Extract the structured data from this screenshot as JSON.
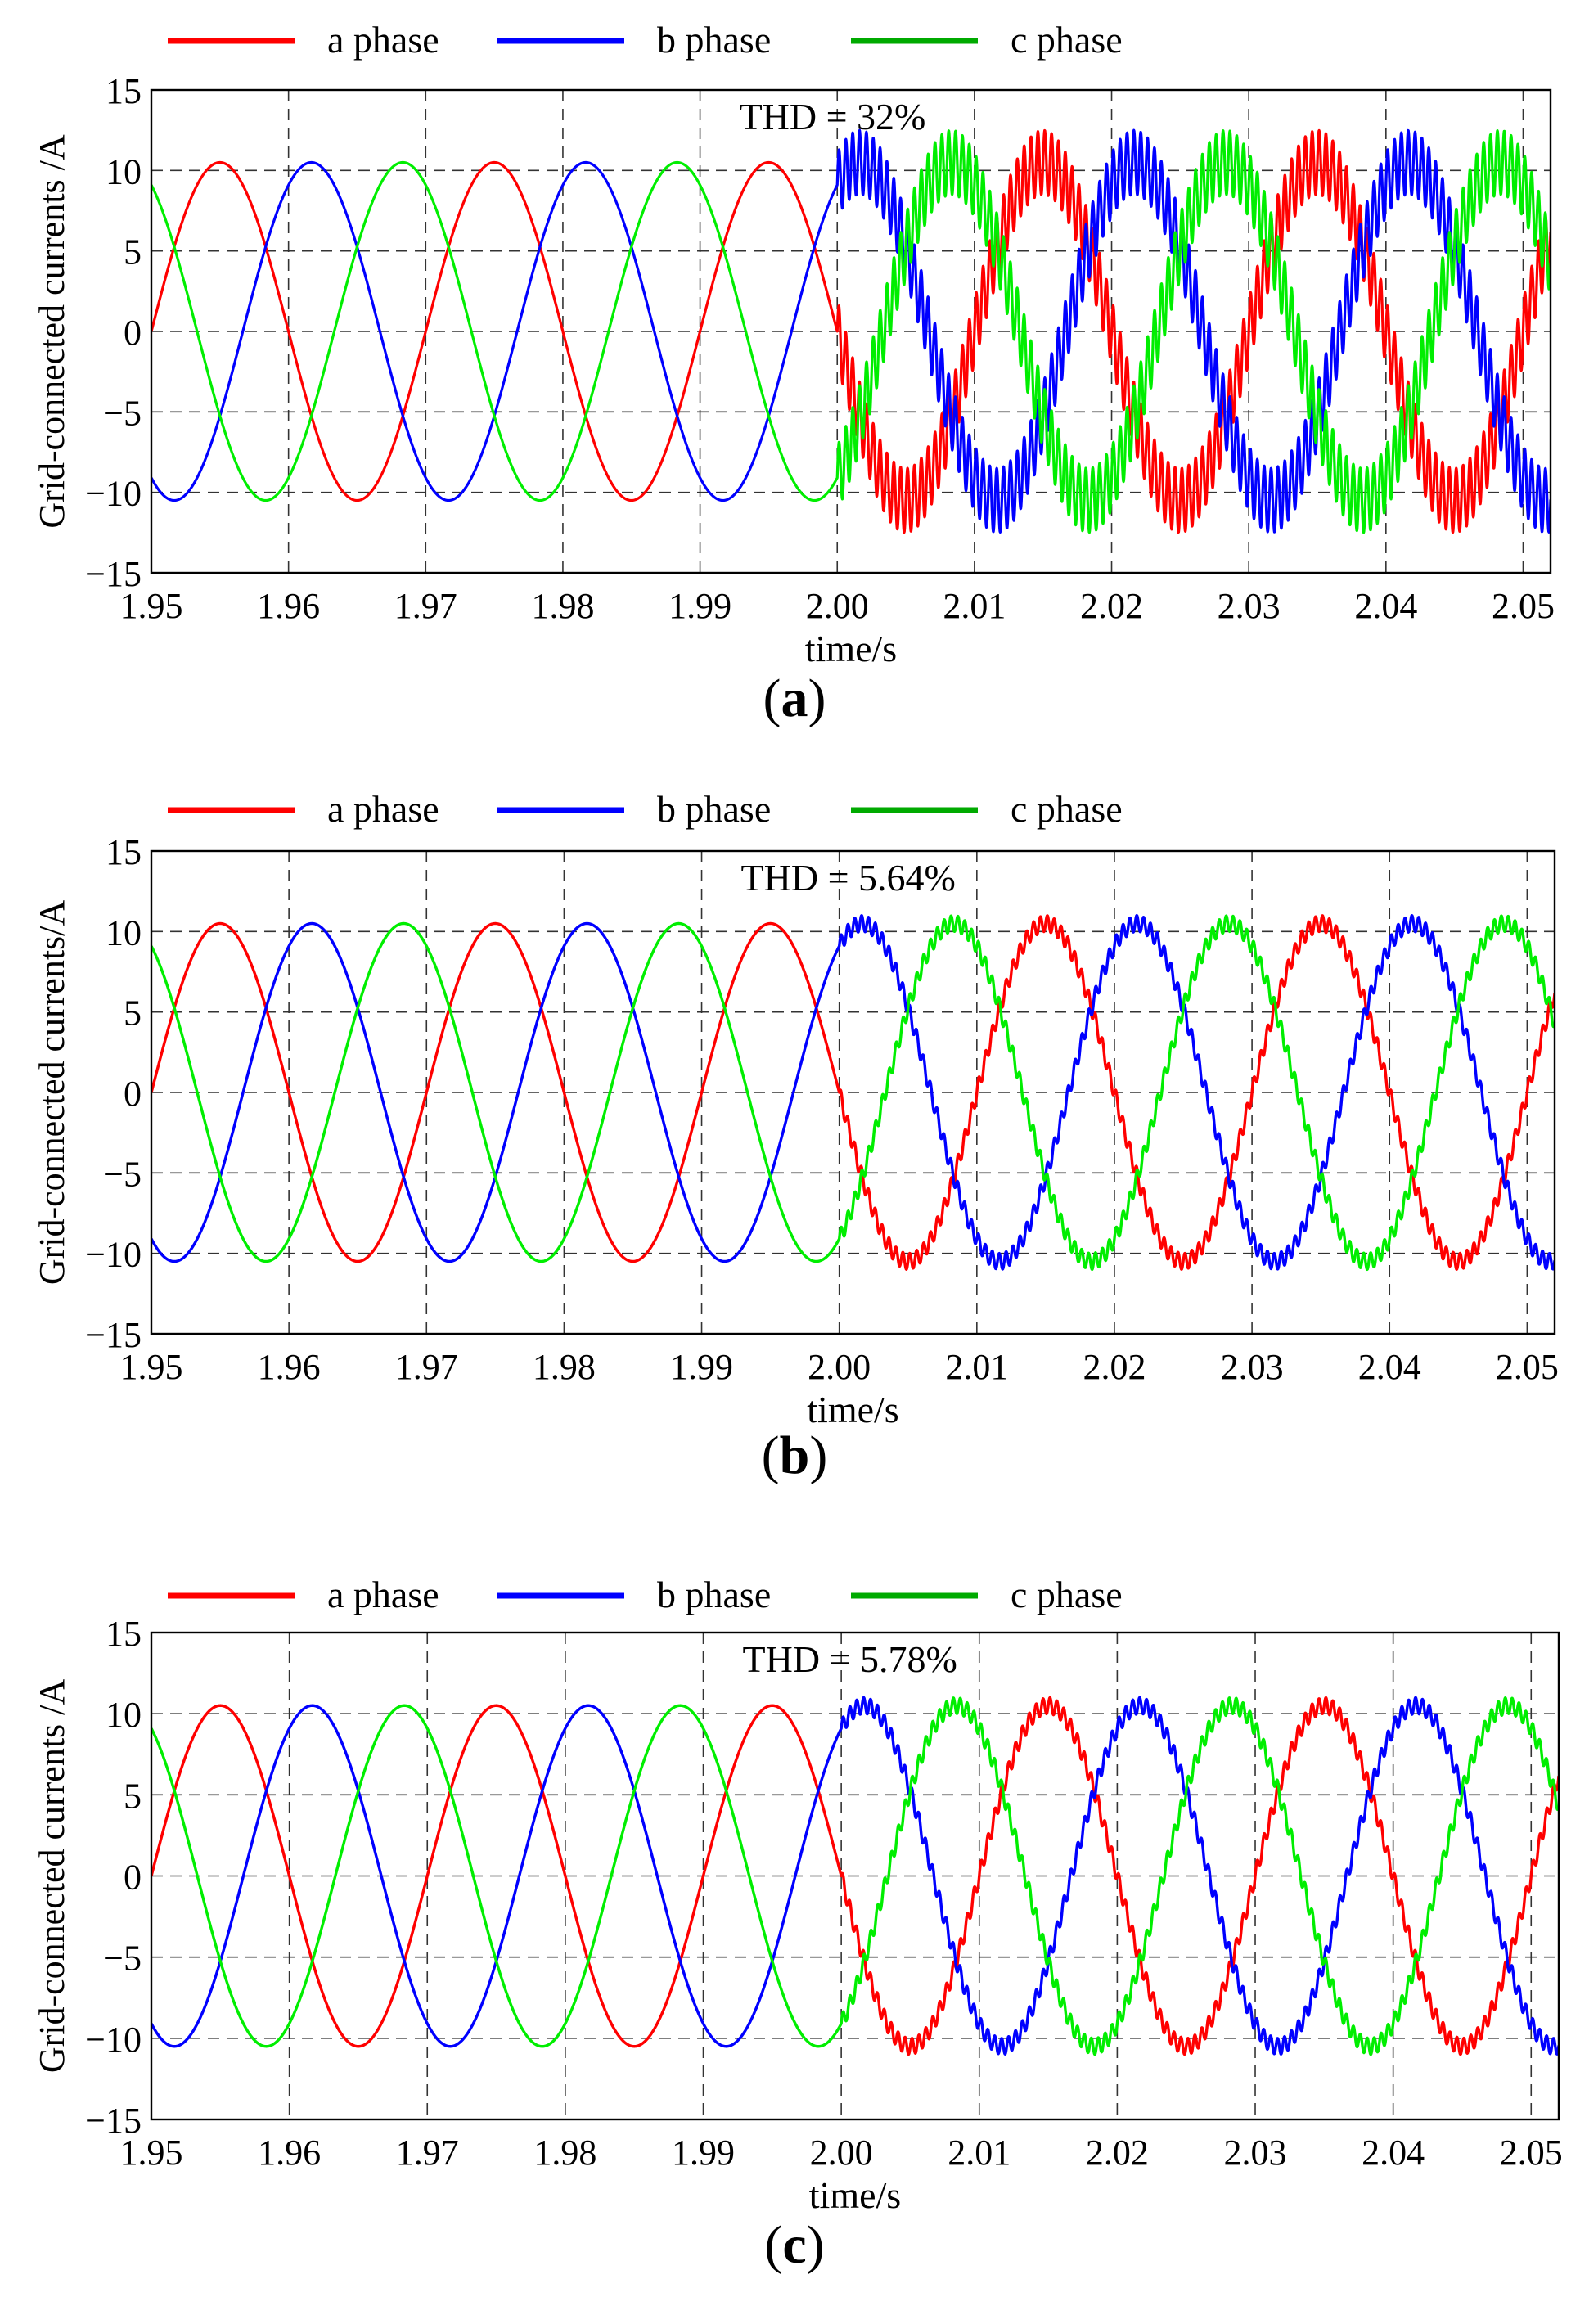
{
  "figure": {
    "panels": [
      "(a)",
      "(b)",
      "(c)"
    ]
  },
  "colors": {
    "a_phase": "#ff0000",
    "b_phase": "#0000ff",
    "c_phase": "#00ee00",
    "legend_c": "#00aa00"
  },
  "chart_data": [
    {
      "type": "line",
      "label": "a",
      "annotation": "THD = 32%",
      "xlabel": "time/s",
      "ylabel": "Grid-connected currents /A",
      "xlim": [
        1.95,
        2.052
      ],
      "ylim": [
        -15,
        15
      ],
      "x_ticks": [
        "1.95",
        "1.96",
        "1.97",
        "1.98",
        "1.99",
        "2.00",
        "2.01",
        "2.02",
        "2.03",
        "2.04",
        "2.05"
      ],
      "y_ticks": [
        "15",
        "10",
        "5",
        "0",
        "−5",
        "−10",
        "−15"
      ],
      "grid": true,
      "legend": [
        "a phase",
        "b phase",
        "c phase"
      ],
      "legend_position": "top",
      "series": [
        {
          "name": "a phase",
          "amplitude": 10.5,
          "frequency_hz": 50,
          "phase_deg": 0
        },
        {
          "name": "b phase",
          "amplitude": 10.5,
          "frequency_hz": 50,
          "phase_deg": -120
        },
        {
          "name": "c phase",
          "amplitude": 10.5,
          "frequency_hz": 50,
          "phase_deg": 120
        }
      ],
      "disturbance": {
        "start_time": 2.0,
        "ripple_amplitude_A": 2.0,
        "fundamental_change": 1.0
      }
    },
    {
      "type": "line",
      "label": "b",
      "annotation": "THD = 5.64%",
      "xlabel": "time/s",
      "ylabel": "Grid-connected currents/A",
      "xlim": [
        1.95,
        2.052
      ],
      "ylim": [
        -15,
        15
      ],
      "x_ticks": [
        "1.95",
        "1.96",
        "1.97",
        "1.98",
        "1.99",
        "2.00",
        "2.01",
        "2.02",
        "2.03",
        "2.04",
        "2.05"
      ],
      "y_ticks": [
        "15",
        "10",
        "5",
        "0",
        "−5",
        "−10",
        "−15"
      ],
      "grid": true,
      "legend": [
        "a phase",
        "b phase",
        "c phase"
      ],
      "legend_position": "top",
      "series": [
        {
          "name": "a phase",
          "amplitude": 10.5,
          "frequency_hz": 50,
          "phase_deg": 0
        },
        {
          "name": "b phase",
          "amplitude": 10.5,
          "frequency_hz": 50,
          "phase_deg": -120
        },
        {
          "name": "c phase",
          "amplitude": 10.5,
          "frequency_hz": 50,
          "phase_deg": 120
        }
      ],
      "disturbance": {
        "start_time": 2.0,
        "ripple_amplitude_A": 0.5,
        "fundamental_change": 1.0
      }
    },
    {
      "type": "line",
      "label": "c",
      "annotation": "THD = 5.78%",
      "xlabel": "time/s",
      "ylabel": "Grid-connected currents /A",
      "xlim": [
        1.95,
        2.052
      ],
      "ylim": [
        -15,
        15
      ],
      "x_ticks": [
        "1.95",
        "1.96",
        "1.97",
        "1.98",
        "1.99",
        "2.00",
        "2.01",
        "2.02",
        "2.03",
        "2.04",
        "2.05"
      ],
      "y_ticks": [
        "15",
        "10",
        "5",
        "0",
        "−5",
        "−10",
        "−15"
      ],
      "grid": true,
      "legend": [
        "a phase",
        "b phase",
        "c phase"
      ],
      "legend_position": "top",
      "series": [
        {
          "name": "a phase",
          "amplitude": 10.5,
          "frequency_hz": 50,
          "phase_deg": 0
        },
        {
          "name": "b phase",
          "amplitude": 10.5,
          "frequency_hz": 50,
          "phase_deg": -120
        },
        {
          "name": "c phase",
          "amplitude": 10.5,
          "frequency_hz": 50,
          "phase_deg": 120
        }
      ],
      "disturbance": {
        "start_time": 2.0,
        "ripple_amplitude_A": 0.5,
        "fundamental_change": 1.0
      }
    }
  ]
}
